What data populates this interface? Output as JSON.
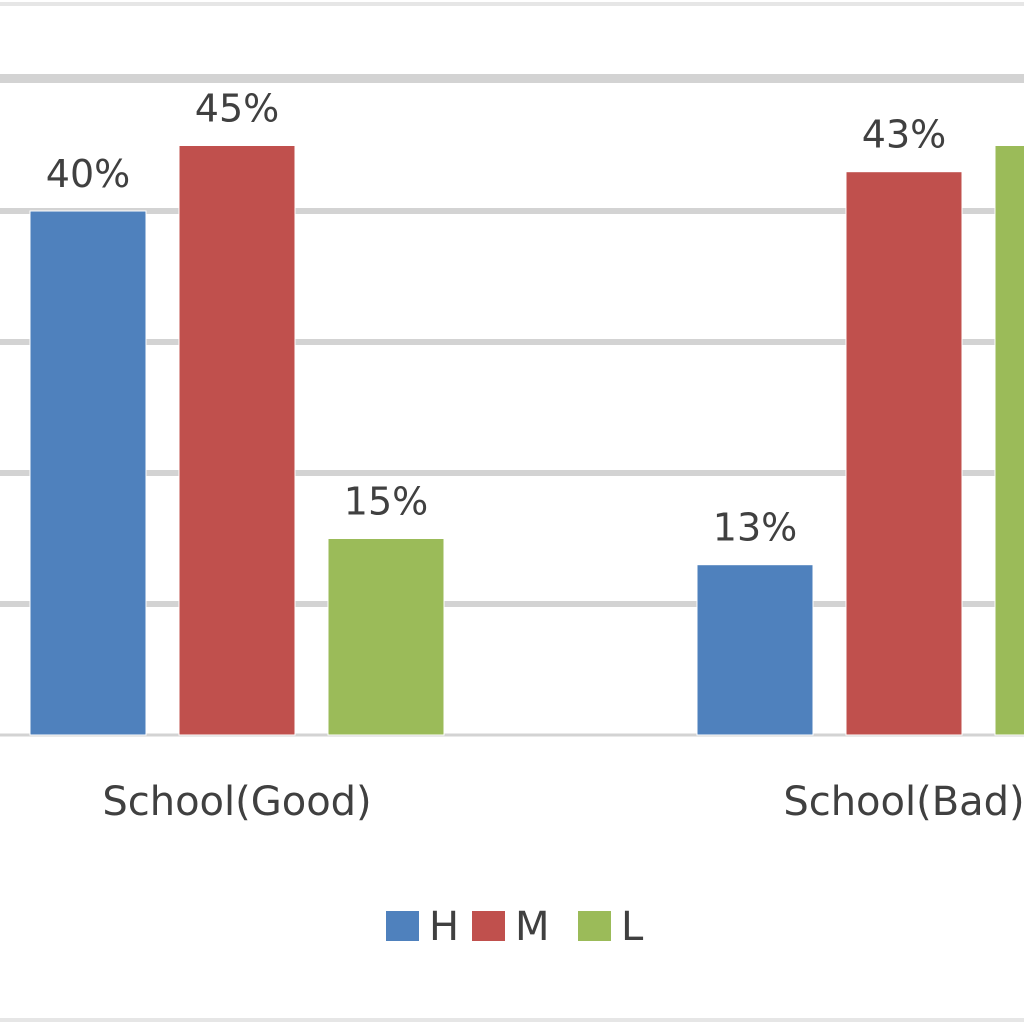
{
  "colors": {
    "H": "#4f81bd",
    "M": "#c0504d",
    "L": "#9bbb59",
    "gridline": "#d3d3d3",
    "text": "#404040"
  },
  "chart_data": {
    "type": "bar",
    "title": "",
    "xlabel": "",
    "ylabel": "",
    "categories": [
      "School(Good)",
      "School(Bad)"
    ],
    "series": [
      {
        "name": "H",
        "values": [
          40,
          13
        ],
        "labels": [
          "40%",
          "13%"
        ]
      },
      {
        "name": "M",
        "values": [
          45,
          43
        ],
        "labels": [
          "45%",
          "43%"
        ]
      },
      {
        "name": "L",
        "values": [
          15,
          45
        ],
        "labels": [
          "15%",
          ""
        ]
      }
    ],
    "ylim": [
      0,
      50
    ],
    "grid": true,
    "legend_position": "bottom"
  }
}
